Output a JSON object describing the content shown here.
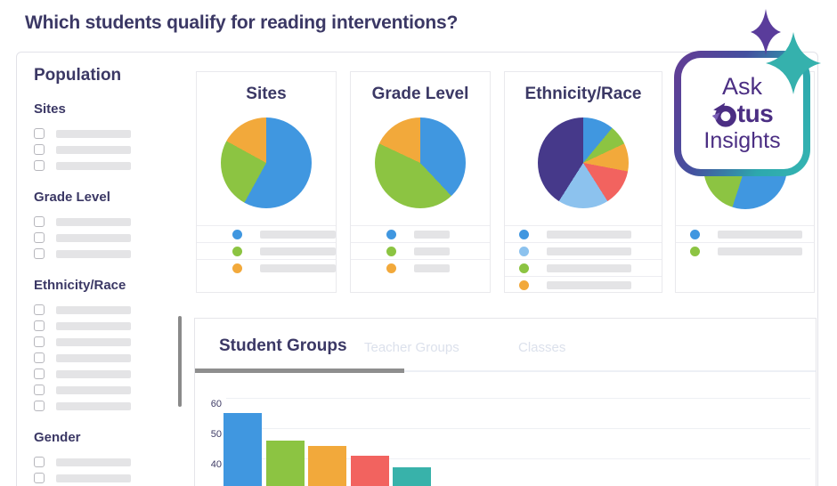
{
  "page": {
    "title": "Which students qualify for reading interventions?"
  },
  "sidebar": {
    "title": "Population",
    "sections": [
      {
        "label": "Sites",
        "options": 3
      },
      {
        "label": "Grade Level",
        "options": 3
      },
      {
        "label": "Ethnicity/Race",
        "options": 7
      },
      {
        "label": "Gender",
        "options": 2
      }
    ]
  },
  "tabs": [
    {
      "label": "Student Groups",
      "active": true
    },
    {
      "label": "Teacher Groups",
      "active": false
    },
    {
      "label": "Classes",
      "active": false
    }
  ],
  "insights_badge": {
    "line1": "Ask",
    "brand": "Otus",
    "brand_suffix": "tus",
    "line3": "Insights"
  },
  "colors": {
    "accent_navy": "#3b3865",
    "blue": "#4097e0",
    "green": "#8cc442",
    "orange": "#f2a93b",
    "coral": "#f2635f",
    "light_blue": "#8cc2ee",
    "purple": "#46398a",
    "teal": "#38b2aa",
    "otus_purple": "#4b2e83",
    "badge_teal": "#35b5b2",
    "sparkle_purple": "#5a3c9b"
  },
  "chart_data": [
    {
      "id": "sites-pie",
      "type": "pie",
      "title": "Sites",
      "slices": [
        {
          "color": "#4097e0",
          "pct": 58
        },
        {
          "color": "#8cc442",
          "pct": 25
        },
        {
          "color": "#f2a93b",
          "pct": 17
        }
      ],
      "legend_colors": [
        "#4097e0",
        "#8cc442",
        "#f2a93b"
      ],
      "legend_labels_visible": false
    },
    {
      "id": "grade-level-pie",
      "type": "pie",
      "title": "Grade Level",
      "slices": [
        {
          "color": "#4097e0",
          "pct": 38
        },
        {
          "color": "#8cc442",
          "pct": 44
        },
        {
          "color": "#f2a93b",
          "pct": 18
        }
      ],
      "legend_colors": [
        "#4097e0",
        "#8cc442",
        "#f2a93b"
      ],
      "legend_labels_visible": false
    },
    {
      "id": "ethnicity-race-pie",
      "type": "pie",
      "title": "Ethnicity/Race",
      "slices": [
        {
          "color": "#4097e0",
          "pct": 11
        },
        {
          "color": "#8cc442",
          "pct": 7
        },
        {
          "color": "#f2a93b",
          "pct": 10
        },
        {
          "color": "#f2635f",
          "pct": 13
        },
        {
          "color": "#8cc2ee",
          "pct": 18
        },
        {
          "color": "#46398a",
          "pct": 41
        }
      ],
      "legend_colors": [
        "#4097e0",
        "#8cc2ee",
        "#8cc442",
        "#f2a93b"
      ],
      "legend_labels_visible": false
    },
    {
      "id": "hidden-title-pie",
      "type": "pie",
      "title": "",
      "slices": [
        {
          "color": "#4097e0",
          "pct": 55
        },
        {
          "color": "#8cc442",
          "pct": 45
        }
      ],
      "legend_colors": [
        "#4097e0",
        "#8cc442"
      ],
      "legend_labels_visible": false
    },
    {
      "id": "student-groups-bar",
      "type": "bar",
      "values": [
        55,
        46,
        44,
        41,
        37
      ],
      "bar_colors": [
        "#4097e0",
        "#8cc442",
        "#f2a93b",
        "#f2635f",
        "#38b2aa"
      ],
      "y_ticks": [
        60,
        50,
        40
      ],
      "x_labels_visible": false
    }
  ]
}
